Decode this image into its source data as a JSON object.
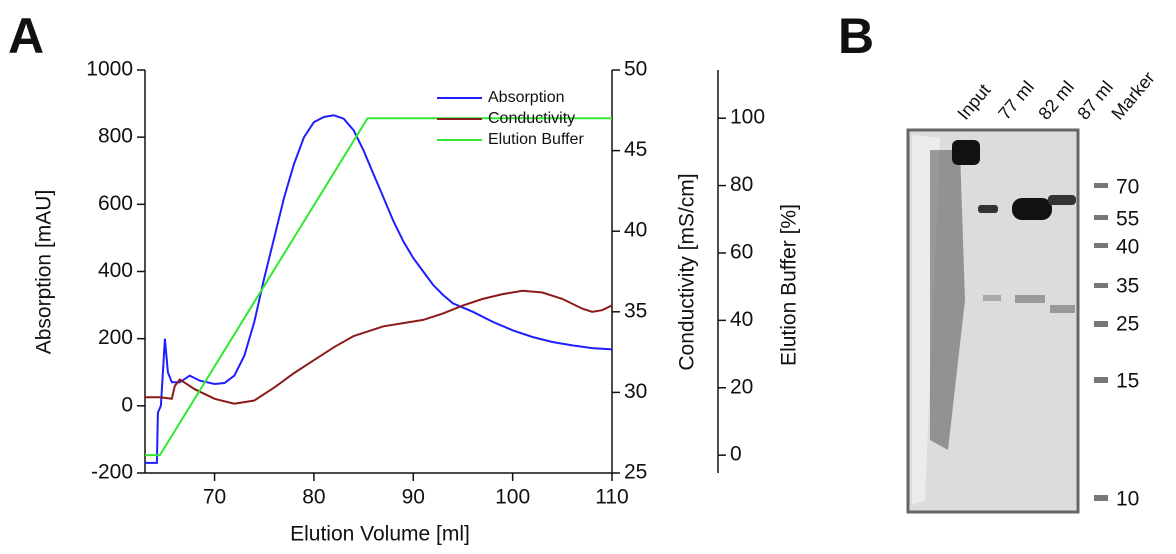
{
  "panels": {
    "a": "A",
    "b": "B"
  },
  "chart_data": {
    "type": "line",
    "xlabel": "Elution Volume [ml]",
    "ylabel": "Absorption [mAU]",
    "y2label": "Conductivity [mS/cm]",
    "y3label": "Elution Buffer [%]",
    "xlim": [
      63,
      110
    ],
    "xticks": [
      70,
      80,
      90,
      100,
      110
    ],
    "ylim": [
      -200,
      1000
    ],
    "yticks": [
      -200,
      0,
      200,
      400,
      600,
      800,
      1000
    ],
    "y2lim": [
      25,
      50
    ],
    "y2ticks": [
      25,
      30,
      35,
      40,
      45,
      50
    ],
    "y3lim": [
      -5.3,
      114.3
    ],
    "y3ticks": [
      0,
      20,
      40,
      60,
      80,
      100
    ],
    "legend": "upper right",
    "series": [
      {
        "name": "Absorption",
        "color": "#1f1fff",
        "x": [
          63,
          64.2,
          64.3,
          64.6,
          65,
          65.3,
          65.7,
          66.5,
          67.5,
          68.5,
          70,
          71,
          72,
          73,
          74,
          75,
          76,
          77,
          78,
          79,
          80,
          81,
          82,
          83,
          84,
          85,
          86,
          87,
          88,
          89,
          90,
          91,
          92,
          93,
          94,
          96,
          98,
          100,
          102,
          104,
          106,
          108,
          110
        ],
        "values": [
          -170,
          -170,
          -20,
          0,
          200,
          100,
          70,
          70,
          90,
          75,
          65,
          68,
          90,
          150,
          250,
          380,
          500,
          620,
          720,
          800,
          845,
          860,
          865,
          855,
          820,
          760,
          690,
          620,
          550,
          490,
          440,
          400,
          360,
          330,
          305,
          280,
          250,
          225,
          205,
          190,
          180,
          172,
          168
        ]
      },
      {
        "name": "Conductivity",
        "color": "#8b1a1a",
        "axis": "y2",
        "x": [
          63,
          64.5,
          65.7,
          66,
          66.5,
          67,
          68,
          70,
          72,
          74,
          76,
          78,
          80,
          82,
          84,
          85,
          87,
          89,
          91,
          93,
          95,
          97,
          99,
          101,
          103,
          105,
          107,
          108,
          109,
          110
        ],
        "values": [
          29.7,
          29.7,
          29.6,
          30.4,
          30.8,
          30.6,
          30.2,
          29.6,
          29.3,
          29.5,
          30.3,
          31.2,
          32.0,
          32.8,
          33.5,
          33.7,
          34.1,
          34.3,
          34.5,
          34.9,
          35.4,
          35.8,
          36.1,
          36.3,
          36.2,
          35.8,
          35.2,
          35.0,
          35.1,
          35.4
        ]
      },
      {
        "name": "Elution Buffer",
        "color": "#33e633",
        "axis": "y3",
        "x": [
          63,
          64.5,
          85.4,
          110
        ],
        "values": [
          0,
          0,
          100,
          100
        ]
      }
    ]
  },
  "gel": {
    "lanes": [
      "Input",
      "77 ml",
      "82 ml",
      "87 ml",
      "Marker"
    ],
    "marker_sizes": [
      70,
      55,
      40,
      35,
      25,
      15,
      10
    ]
  }
}
